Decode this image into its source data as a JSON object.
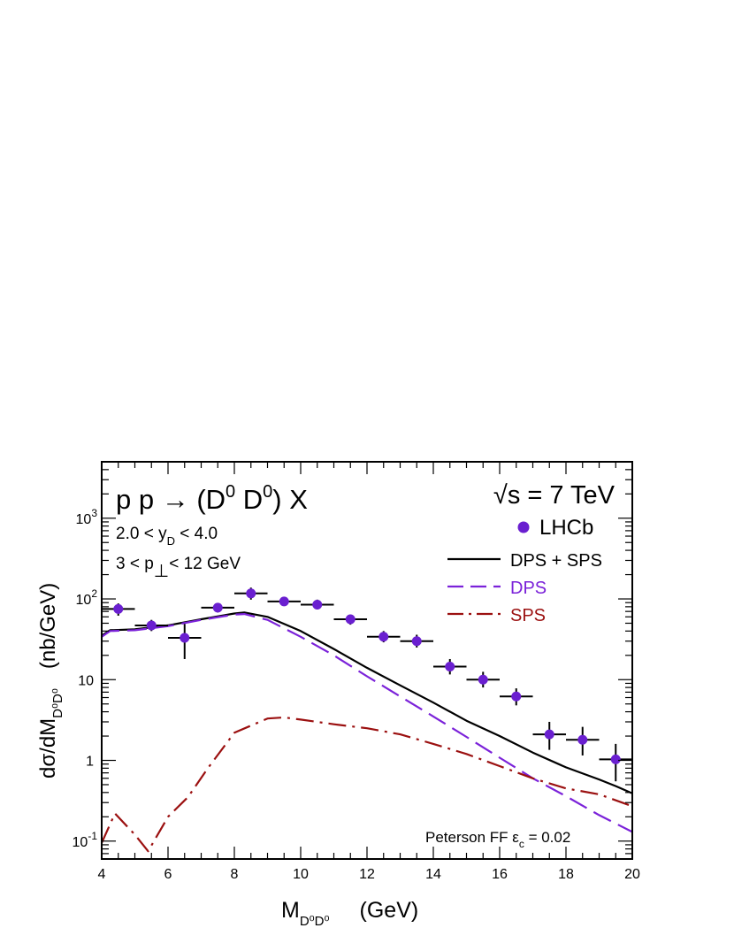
{
  "chart_data": {
    "type": "line",
    "title": "p p → (D0 D0) X",
    "title_parts": {
      "pre": "p p → (D",
      "sup1": "0",
      "mid": " D",
      "sup2": "0",
      "post": ") X"
    },
    "energy_label": {
      "root": "√",
      "text": "s = 7 TeV"
    },
    "cut_rapidity": {
      "pre": "2.0 < y",
      "sub": "D",
      "post": " < 4.0"
    },
    "cut_pt": {
      "pre": "3 < p",
      "sub": "⊥",
      "post": "< 12 GeV"
    },
    "fragmentation_label": {
      "pre": "Peterson FF  ε",
      "sub": "c",
      "post": " = 0.02"
    },
    "xlabel": {
      "main": "M",
      "sub": "D⁰D⁰",
      "unit": "(GeV)"
    },
    "ylabel": {
      "main": "dσ/dM",
      "sub": "D⁰D⁰",
      "unit": "(nb/GeV)"
    },
    "xlim": [
      4,
      20
    ],
    "ylim": [
      0.06,
      5000
    ],
    "yscale": "log",
    "xticks": [
      4,
      6,
      8,
      10,
      12,
      14,
      16,
      18,
      20
    ],
    "xtick_labels": [
      "4",
      "6",
      "8",
      "10",
      "12",
      "14",
      "16",
      "18",
      "20"
    ],
    "yticks_labeled": [
      {
        "value": 0.1,
        "base": "10",
        "exp": "-1"
      },
      {
        "value": 1,
        "base": "1",
        "exp": ""
      },
      {
        "value": 10,
        "base": "10",
        "exp": ""
      },
      {
        "value": 100,
        "base": "10",
        "exp": "2"
      },
      {
        "value": 1000,
        "base": "10",
        "exp": "3"
      }
    ],
    "legend": [
      {
        "label": "LHCb",
        "kind": "marker",
        "color": "#6a1fd0"
      },
      {
        "label": "DPS + SPS",
        "kind": "solid",
        "color": "#000000"
      },
      {
        "label": "DPS",
        "kind": "dashed",
        "color": "#7b22d9"
      },
      {
        "label": "SPS",
        "kind": "dashdot",
        "color": "#9b1010"
      }
    ],
    "data_points": {
      "name": "LHCb",
      "x": [
        4.5,
        5.5,
        6.5,
        7.5,
        8.5,
        9.5,
        10.5,
        11.5,
        12.5,
        13.5,
        14.5,
        15.5,
        16.5,
        17.5,
        18.5,
        19.5
      ],
      "y": [
        75,
        47,
        33,
        78,
        117,
        93,
        85,
        56,
        34,
        30,
        14.5,
        10,
        6.2,
        2.1,
        1.8,
        1.03
      ],
      "y_low": [
        62,
        40,
        18,
        68,
        98,
        82,
        74,
        48,
        29,
        25,
        11.6,
        8,
        4.8,
        1.35,
        1.15,
        0.55
      ],
      "y_high": [
        88,
        55,
        49,
        88,
        138,
        106,
        98,
        64,
        40,
        36,
        18,
        12.5,
        7.8,
        3.0,
        2.6,
        1.6
      ],
      "x_half_width": 0.5
    },
    "series": [
      {
        "name": "DPS + SPS",
        "x": [
          4,
          4.25,
          5,
          6,
          7,
          8,
          8.3,
          9,
          10,
          11,
          12,
          13,
          14,
          15,
          16,
          17,
          18,
          19,
          19.5,
          20
        ],
        "y": [
          35,
          41,
          42,
          47,
          56,
          66,
          68,
          60,
          40,
          24,
          14,
          8.5,
          5.2,
          3.1,
          2.0,
          1.25,
          0.82,
          0.58,
          0.48,
          0.39
        ]
      },
      {
        "name": "DPS",
        "x": [
          4,
          4.25,
          5,
          6,
          7,
          8,
          8.3,
          9,
          10,
          11,
          12,
          13,
          14,
          15,
          16,
          17,
          18,
          19,
          20
        ],
        "y": [
          34,
          40,
          41,
          46,
          55,
          64,
          65,
          55,
          34,
          20,
          11,
          6.2,
          3.5,
          1.95,
          1.08,
          0.6,
          0.36,
          0.21,
          0.13
        ]
      },
      {
        "name": "SPS",
        "x": [
          4,
          4.4,
          5.0,
          5.4,
          6.0,
          6.6,
          7.2,
          8.0,
          9.0,
          9.5,
          10,
          11,
          12,
          13,
          14,
          15,
          16,
          17,
          18,
          19,
          20
        ],
        "y": [
          0.095,
          0.22,
          0.12,
          0.075,
          0.2,
          0.35,
          0.8,
          2.2,
          3.3,
          3.4,
          3.2,
          2.8,
          2.5,
          2.1,
          1.6,
          1.2,
          0.85,
          0.6,
          0.45,
          0.38,
          0.27
        ]
      }
    ]
  }
}
